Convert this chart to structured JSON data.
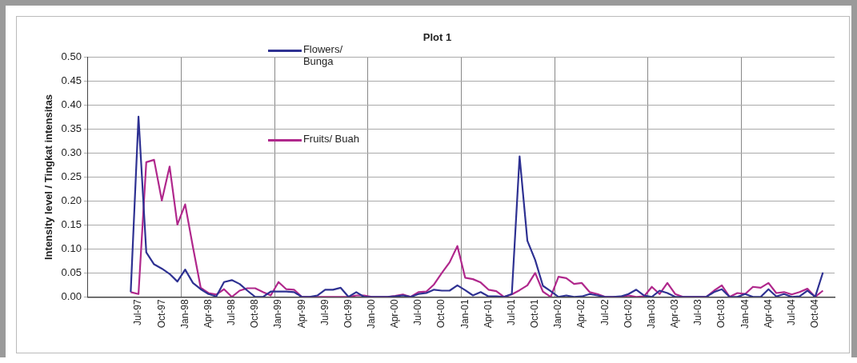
{
  "chart_data": {
    "type": "line",
    "title": "Plot 1",
    "ylabel": "Intensity level / Tingkat intensitas",
    "categories": [
      null,
      null,
      null,
      null,
      null,
      null,
      "Jul-97",
      null,
      null,
      "Oct-97",
      null,
      null,
      "Jan-98",
      null,
      null,
      "Apr-98",
      null,
      null,
      "Jul-98",
      null,
      null,
      "Oct-98",
      null,
      null,
      "Jan-99",
      null,
      null,
      "Apr-99",
      null,
      null,
      "Jul-99",
      null,
      null,
      "Oct-99",
      null,
      null,
      "Jan-00",
      null,
      null,
      "Apr-00",
      null,
      null,
      "Jul-00",
      null,
      null,
      "Oct-00",
      null,
      null,
      "Jan-01",
      null,
      null,
      "Apr-01",
      null,
      null,
      "Jul-01",
      null,
      null,
      "Oct-01",
      null,
      null,
      "Jan-02",
      null,
      null,
      "Apr-02",
      null,
      null,
      "Jul-02",
      null,
      null,
      "Oct-02",
      null,
      null,
      "Jan-03",
      null,
      null,
      "Apr-03",
      null,
      null,
      "Jul-03",
      null,
      null,
      "Oct-03",
      null,
      null,
      "Jan-04",
      null,
      null,
      "Apr-04",
      null,
      null,
      "Jul-04",
      null,
      null,
      "Oct-04",
      null,
      null
    ],
    "series": [
      {
        "name": "Flowers/ Bunga",
        "color": "#2e3192",
        "values": [
          null,
          null,
          null,
          null,
          null,
          0.01,
          0.376,
          0.093,
          0.068,
          0.059,
          0.048,
          0.032,
          0.057,
          0.029,
          0.016,
          0.006,
          0.001,
          0.031,
          0.035,
          0.027,
          0.013,
          0,
          0,
          0.011,
          0.011,
          0.011,
          0.01,
          0,
          0,
          0.003,
          0.015,
          0.015,
          0.019,
          0,
          0.01,
          0,
          0,
          0,
          0,
          0.001,
          0.003,
          0,
          0.006,
          0.008,
          0.015,
          0.013,
          0.013,
          0.024,
          0.014,
          0.003,
          0.01,
          0.001,
          0.001,
          0,
          0.006,
          0.293,
          0.117,
          0.077,
          0.023,
          0.012,
          0,
          0.003,
          0,
          0.001,
          0.006,
          0.003,
          0,
          0,
          0.001,
          0.006,
          0.015,
          0.003,
          0,
          0.013,
          0.008,
          0,
          0,
          0,
          0,
          0,
          0.01,
          0.016,
          0,
          0,
          0.006,
          0,
          0,
          0.016,
          0.001,
          0.006,
          0,
          0.001,
          0.013,
          0,
          0.051,
          null
        ]
      },
      {
        "name": "Fruits/ Buah",
        "color": "#b0288c",
        "values": [
          null,
          null,
          null,
          null,
          null,
          0.01,
          0.006,
          0.281,
          0.286,
          0.201,
          0.272,
          0.151,
          0.193,
          0.104,
          0.019,
          0.008,
          0.005,
          0.016,
          0,
          0.013,
          0.018,
          0.018,
          0.01,
          0.003,
          0.031,
          0.016,
          0.015,
          0,
          0,
          0,
          0,
          0,
          0,
          0,
          0.003,
          0.003,
          0,
          0,
          0,
          0.002,
          0.005,
          0,
          0.01,
          0.011,
          0.026,
          0.05,
          0.072,
          0.106,
          0.04,
          0.037,
          0.03,
          0.015,
          0.012,
          0,
          0.005,
          0.014,
          0.024,
          0.05,
          0.011,
          0,
          0.042,
          0.039,
          0.027,
          0.029,
          0.01,
          0.006,
          0,
          0,
          0,
          0.003,
          0,
          0.001,
          0.021,
          0.006,
          0.029,
          0.006,
          0,
          0,
          0,
          0,
          0.013,
          0.024,
          0,
          0.008,
          0.006,
          0.021,
          0.019,
          0.029,
          0.008,
          0.01,
          0.005,
          0.01,
          0.017,
          0,
          0.013,
          null
        ]
      }
    ],
    "ylim": [
      0,
      0.5
    ],
    "yticks": [
      {
        "value": 0,
        "label": "0.00"
      },
      {
        "value": 0.05,
        "label": "0.05"
      },
      {
        "value": 0.1,
        "label": "0.10"
      },
      {
        "value": 0.15,
        "label": "0.15"
      },
      {
        "value": 0.2,
        "label": "0.20"
      },
      {
        "value": 0.25,
        "label": "0.25"
      },
      {
        "value": 0.3,
        "label": "0.30"
      },
      {
        "value": 0.35,
        "label": "0.35"
      },
      {
        "value": 0.4,
        "label": "0.40"
      },
      {
        "value": 0.45,
        "label": "0.45"
      },
      {
        "value": 0.5,
        "label": "0.50"
      }
    ],
    "grid": true,
    "legend": "top",
    "marker": "none",
    "line_style": "solid"
  }
}
